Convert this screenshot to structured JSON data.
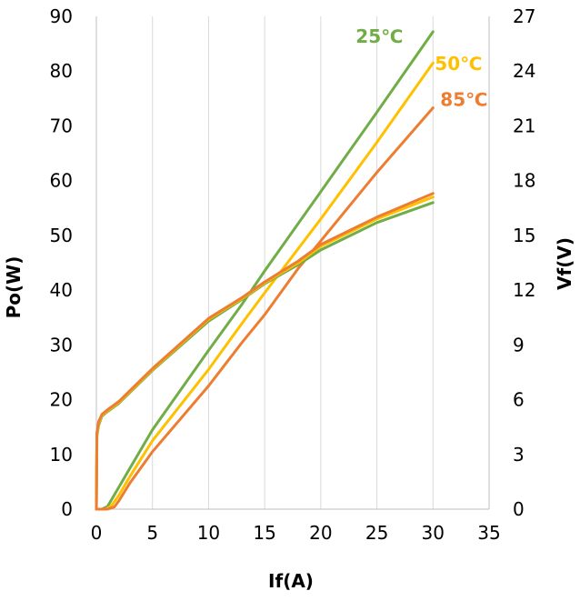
{
  "chart_data": {
    "type": "line",
    "title": "",
    "xlabel": "If(A)",
    "ylabel_left": "Po(W)",
    "ylabel_right": "Vf(V)",
    "xlim": [
      0,
      35
    ],
    "ylim_left": [
      0,
      90
    ],
    "ylim_right": [
      0,
      27
    ],
    "x_ticks": [
      "0",
      "5",
      "10",
      "15",
      "20",
      "25",
      "30",
      "35"
    ],
    "y_left_ticks": [
      "0",
      "10",
      "20",
      "30",
      "40",
      "50",
      "60",
      "70",
      "80",
      "90"
    ],
    "y_right_ticks": [
      "0",
      "3",
      "6",
      "9",
      "12",
      "15",
      "18",
      "21",
      "24",
      "27"
    ],
    "grid": "vertical-major",
    "legend": "inline labels near line ends",
    "series": [
      {
        "name": "25℃",
        "color": "#70AD47",
        "axis": "left",
        "label": "25℃",
        "points": [
          [
            0,
            0
          ],
          [
            0.5,
            0
          ],
          [
            1,
            0.5
          ],
          [
            2,
            4
          ],
          [
            3,
            7.5
          ],
          [
            5,
            14.5
          ],
          [
            10,
            29
          ],
          [
            13,
            37.5
          ],
          [
            15,
            43.5
          ],
          [
            20,
            58
          ],
          [
            25,
            72.5
          ],
          [
            30,
            87.2
          ]
        ]
      },
      {
        "name": "50℃",
        "color": "#FFC000",
        "axis": "left",
        "label": "50℃",
        "points": [
          [
            0,
            0
          ],
          [
            0.8,
            0
          ],
          [
            1.3,
            0.5
          ],
          [
            2,
            2.5
          ],
          [
            3,
            6
          ],
          [
            5,
            12.5
          ],
          [
            10,
            25.5
          ],
          [
            13,
            34
          ],
          [
            15,
            39.5
          ],
          [
            20,
            53
          ],
          [
            25,
            67
          ],
          [
            30,
            81.5
          ]
        ]
      },
      {
        "name": "85℃",
        "color": "#ED7D31",
        "axis": "left",
        "label": "85℃",
        "points": [
          [
            0,
            0
          ],
          [
            1,
            0
          ],
          [
            1.6,
            0.4
          ],
          [
            2,
            1.5
          ],
          [
            3,
            4.8
          ],
          [
            5,
            10.5
          ],
          [
            10,
            22.5
          ],
          [
            13,
            30.5
          ],
          [
            15,
            35.5
          ],
          [
            18,
            44
          ],
          [
            20,
            49
          ],
          [
            25,
            61.5
          ],
          [
            30,
            73.3
          ]
        ]
      },
      {
        "name": "Vf 25℃",
        "color": "#70AD47",
        "axis": "right",
        "points": [
          [
            0,
            0
          ],
          [
            0.05,
            4
          ],
          [
            0.2,
            4.6
          ],
          [
            0.5,
            5.1
          ],
          [
            1,
            5.35
          ],
          [
            2,
            5.8
          ],
          [
            5,
            7.6
          ],
          [
            10,
            10.3
          ],
          [
            13,
            11.5
          ],
          [
            15,
            12.35
          ],
          [
            18,
            13.4
          ],
          [
            20,
            14.2
          ],
          [
            25,
            15.7
          ],
          [
            30,
            16.8
          ]
        ]
      },
      {
        "name": "Vf 50℃",
        "color": "#FFC000",
        "axis": "right",
        "points": [
          [
            0,
            0
          ],
          [
            0.05,
            4.1
          ],
          [
            0.2,
            4.7
          ],
          [
            0.5,
            5.15
          ],
          [
            1,
            5.4
          ],
          [
            2,
            5.85
          ],
          [
            5,
            7.65
          ],
          [
            10,
            10.4
          ],
          [
            13,
            11.55
          ],
          [
            15,
            12.4
          ],
          [
            18,
            13.5
          ],
          [
            20,
            14.4
          ],
          [
            25,
            15.9
          ],
          [
            30,
            17.1
          ]
        ]
      },
      {
        "name": "Vf 85℃",
        "color": "#ED7D31",
        "axis": "right",
        "points": [
          [
            0,
            0
          ],
          [
            0.05,
            4.2
          ],
          [
            0.2,
            4.8
          ],
          [
            0.5,
            5.2
          ],
          [
            1,
            5.45
          ],
          [
            2,
            5.9
          ],
          [
            5,
            7.7
          ],
          [
            10,
            10.45
          ],
          [
            13,
            11.6
          ],
          [
            15,
            12.45
          ],
          [
            18,
            13.6
          ],
          [
            20,
            14.5
          ],
          [
            25,
            16.0
          ],
          [
            30,
            17.3
          ]
        ]
      }
    ]
  }
}
